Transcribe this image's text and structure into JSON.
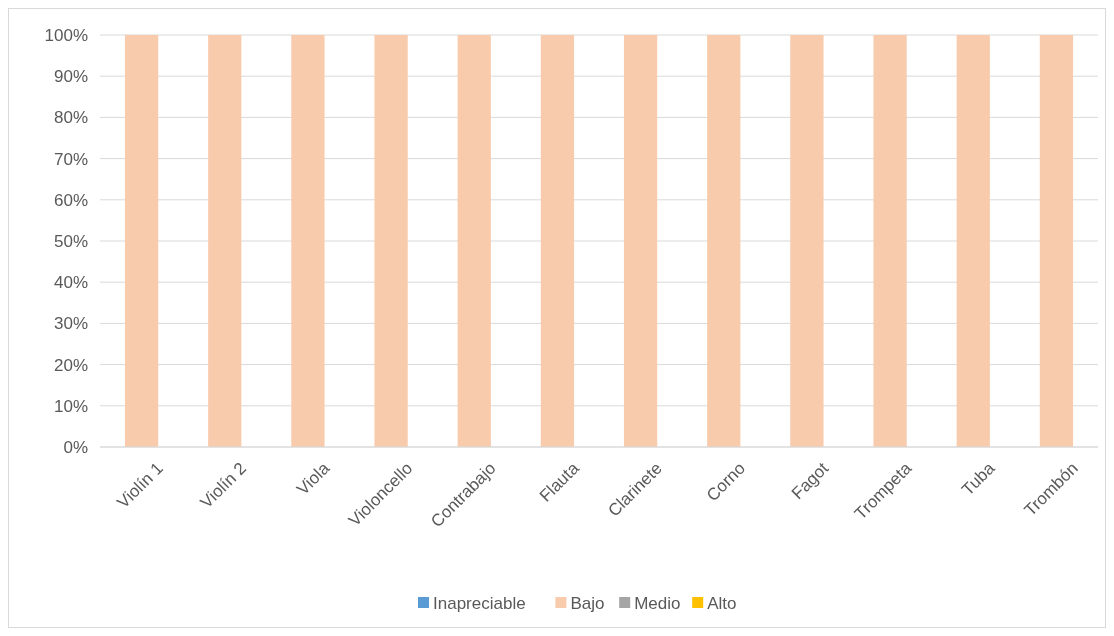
{
  "chart_data": {
    "type": "bar",
    "stacked": true,
    "categories": [
      "Violín 1",
      "Violín 2",
      "Viola",
      "Violoncello",
      "Contrabajo",
      "Flauta",
      "Clarinete",
      "Corno",
      "Fagot",
      "Trompeta",
      "Tuba",
      "Trombón"
    ],
    "series": [
      {
        "name": "Inapreciable",
        "color": "#5b9bd5",
        "values": [
          0,
          0,
          0,
          0,
          0,
          0,
          0,
          0,
          0,
          0,
          0,
          0
        ]
      },
      {
        "name": "Bajo",
        "color": "#f8cbad",
        "values": [
          100,
          100,
          100,
          100,
          100,
          100,
          100,
          100,
          100,
          100,
          100,
          100
        ]
      },
      {
        "name": "Medio",
        "color": "#a5a5a5",
        "values": [
          0,
          0,
          0,
          0,
          0,
          0,
          0,
          0,
          0,
          0,
          0,
          0
        ]
      },
      {
        "name": "Alto",
        "color": "#ffc000",
        "values": [
          0,
          0,
          0,
          0,
          0,
          0,
          0,
          0,
          0,
          0,
          0,
          0
        ]
      }
    ],
    "ylim": [
      0,
      100
    ],
    "yticks": [
      {
        "value": 0,
        "label": "0%"
      },
      {
        "value": 10,
        "label": "10%"
      },
      {
        "value": 20,
        "label": "20%"
      },
      {
        "value": 30,
        "label": "30%"
      },
      {
        "value": 40,
        "label": "40%"
      },
      {
        "value": 50,
        "label": "50%"
      },
      {
        "value": 60,
        "label": "60%"
      },
      {
        "value": 70,
        "label": "70%"
      },
      {
        "value": 80,
        "label": "80%"
      },
      {
        "value": 90,
        "label": "90%"
      },
      {
        "value": 100,
        "label": "100%"
      }
    ],
    "grid": "y",
    "legend": "bottom"
  }
}
